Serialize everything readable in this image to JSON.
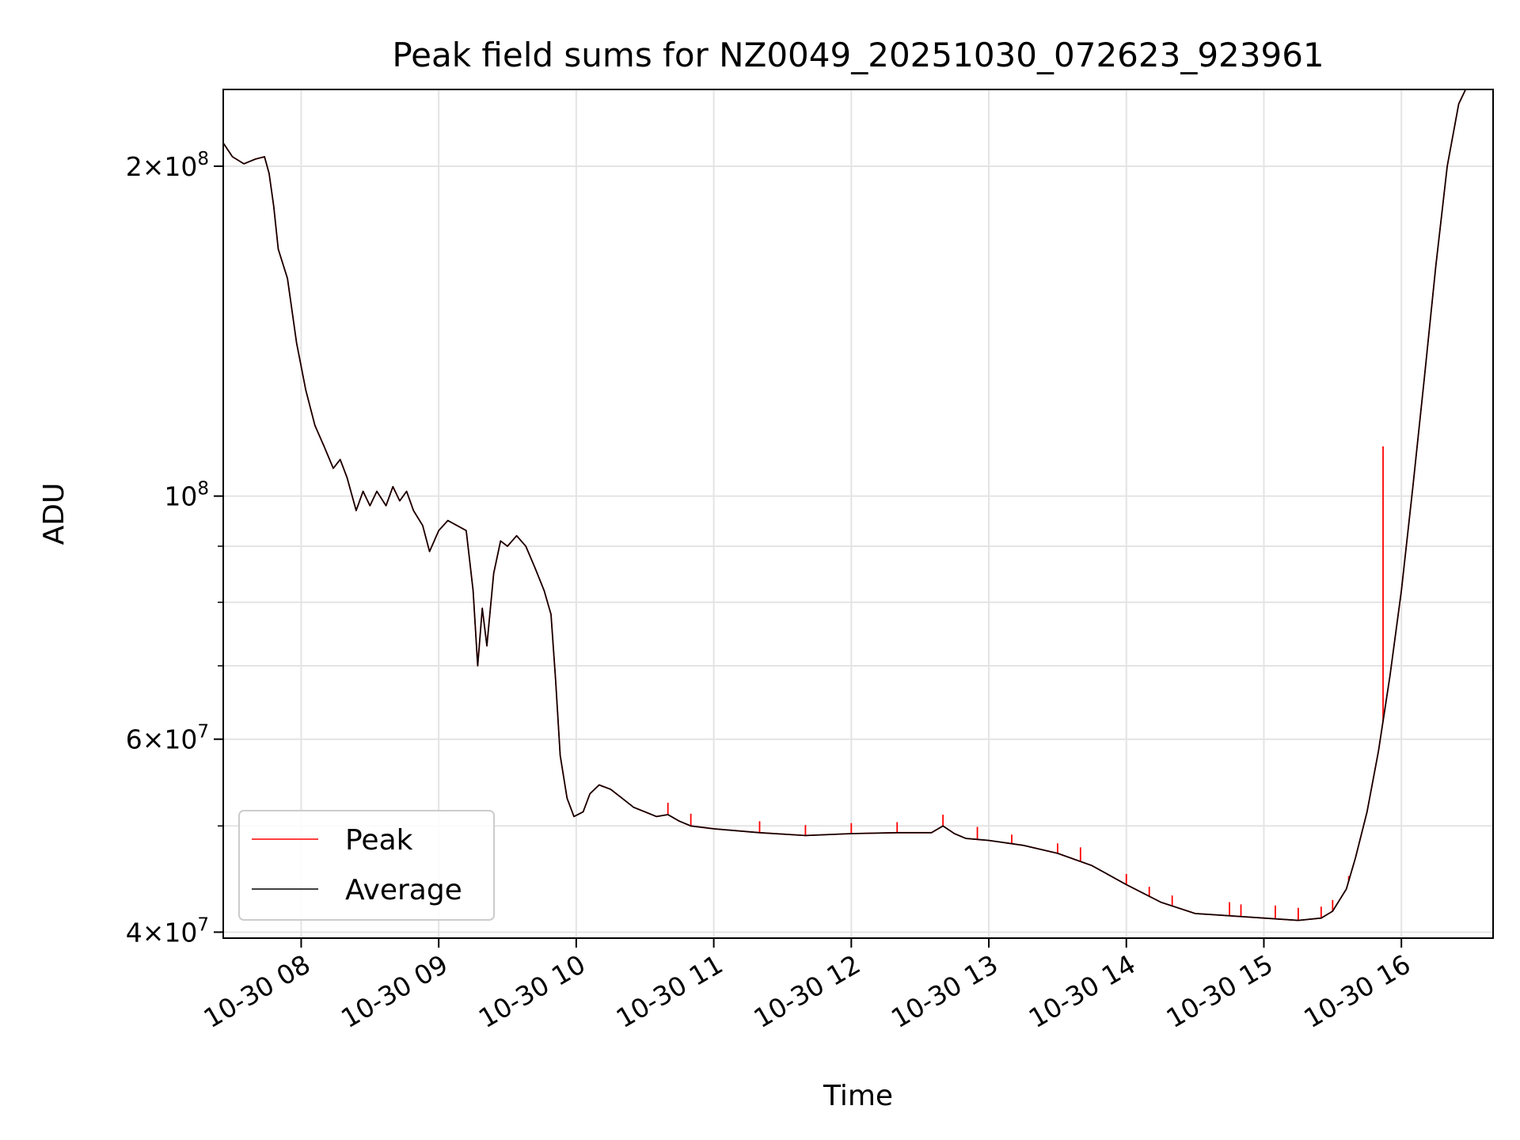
{
  "chart_data": {
    "type": "line",
    "title": "Peak field sums for NZ0049_20251030_072623_923961",
    "xlabel": "Time",
    "ylabel": "ADU",
    "y_scale": "log",
    "grid": true,
    "legend_position": "lower-left",
    "x_time_range": [
      "2025-10-30 07:26",
      "2025-10-30 16:40"
    ],
    "ylim": [
      39500000,
      235000000
    ],
    "x_ticks": [
      "2025-10-30 08:00",
      "2025-10-30 09:00",
      "2025-10-30 10:00",
      "2025-10-30 11:00",
      "2025-10-30 12:00",
      "2025-10-30 13:00",
      "2025-10-30 14:00",
      "2025-10-30 15:00",
      "2025-10-30 16:00"
    ],
    "x_tick_labels": [
      "10-30 08",
      "10-30 09",
      "10-30 10",
      "10-30 11",
      "10-30 12",
      "10-30 13",
      "10-30 14",
      "10-30 15",
      "10-30 16"
    ],
    "y_ticks": [
      {
        "value": 200000000,
        "mantissa": "2",
        "exp": "8"
      },
      {
        "value": 100000000,
        "mantissa": "",
        "exp": "8"
      },
      {
        "value": 60000000,
        "mantissa": "6",
        "exp": "7"
      },
      {
        "value": 40000000,
        "mantissa": "4",
        "exp": "7"
      }
    ],
    "y_minor_ticks": [
      50000000,
      70000000,
      80000000,
      90000000
    ],
    "series": [
      {
        "name": "Average",
        "color": "#000000",
        "points": [
          [
            "2025-10-30 07:26",
            210000000
          ],
          [
            "2025-10-30 07:30",
            204000000
          ],
          [
            "2025-10-30 07:35",
            201000000
          ],
          [
            "2025-10-30 07:40",
            203000000
          ],
          [
            "2025-10-30 07:44",
            204000000
          ],
          [
            "2025-10-30 07:46",
            197000000
          ],
          [
            "2025-10-30 07:48",
            184000000
          ],
          [
            "2025-10-30 07:50",
            168000000
          ],
          [
            "2025-10-30 07:54",
            158000000
          ],
          [
            "2025-10-30 07:58",
            138000000
          ],
          [
            "2025-10-30 08:02",
            125000000
          ],
          [
            "2025-10-30 08:06",
            116000000
          ],
          [
            "2025-10-30 08:10",
            111000000
          ],
          [
            "2025-10-30 08:14",
            106000000
          ],
          [
            "2025-10-30 08:17",
            108000000
          ],
          [
            "2025-10-30 08:20",
            104000000
          ],
          [
            "2025-10-30 08:24",
            97000000
          ],
          [
            "2025-10-30 08:27",
            101000000
          ],
          [
            "2025-10-30 08:30",
            98000000
          ],
          [
            "2025-10-30 08:33",
            101000000
          ],
          [
            "2025-10-30 08:37",
            98000000
          ],
          [
            "2025-10-30 08:40",
            102000000
          ],
          [
            "2025-10-30 08:43",
            99000000
          ],
          [
            "2025-10-30 08:46",
            101000000
          ],
          [
            "2025-10-30 08:49",
            97000000
          ],
          [
            "2025-10-30 08:53",
            94000000
          ],
          [
            "2025-10-30 08:56",
            89000000
          ],
          [
            "2025-10-30 09:00",
            93000000
          ],
          [
            "2025-10-30 09:04",
            95000000
          ],
          [
            "2025-10-30 09:08",
            94000000
          ],
          [
            "2025-10-30 09:12",
            93000000
          ],
          [
            "2025-10-30 09:15",
            82000000
          ],
          [
            "2025-10-30 09:17",
            70000000
          ],
          [
            "2025-10-30 09:19",
            79000000
          ],
          [
            "2025-10-30 09:21",
            73000000
          ],
          [
            "2025-10-30 09:24",
            85000000
          ],
          [
            "2025-10-30 09:27",
            91000000
          ],
          [
            "2025-10-30 09:30",
            90000000
          ],
          [
            "2025-10-30 09:34",
            92000000
          ],
          [
            "2025-10-30 09:38",
            90000000
          ],
          [
            "2025-10-30 09:42",
            86000000
          ],
          [
            "2025-10-30 09:46",
            82000000
          ],
          [
            "2025-10-30 09:49",
            78000000
          ],
          [
            "2025-10-30 09:51",
            68000000
          ],
          [
            "2025-10-30 09:53",
            58000000
          ],
          [
            "2025-10-30 09:56",
            53000000
          ],
          [
            "2025-10-30 09:59",
            51000000
          ],
          [
            "2025-10-30 10:03",
            51500000
          ],
          [
            "2025-10-30 10:06",
            53500000
          ],
          [
            "2025-10-30 10:10",
            54500000
          ],
          [
            "2025-10-30 10:15",
            54000000
          ],
          [
            "2025-10-30 10:20",
            53000000
          ],
          [
            "2025-10-30 10:25",
            52000000
          ],
          [
            "2025-10-30 10:30",
            51500000
          ],
          [
            "2025-10-30 10:35",
            51000000
          ],
          [
            "2025-10-30 10:40",
            51200000
          ],
          [
            "2025-10-30 10:45",
            50500000
          ],
          [
            "2025-10-30 10:50",
            50000000
          ],
          [
            "2025-10-30 11:00",
            49700000
          ],
          [
            "2025-10-30 11:20",
            49300000
          ],
          [
            "2025-10-30 11:40",
            49000000
          ],
          [
            "2025-10-30 12:00",
            49200000
          ],
          [
            "2025-10-30 12:20",
            49300000
          ],
          [
            "2025-10-30 12:35",
            49300000
          ],
          [
            "2025-10-30 12:40",
            50000000
          ],
          [
            "2025-10-30 12:45",
            49200000
          ],
          [
            "2025-10-30 12:50",
            48700000
          ],
          [
            "2025-10-30 13:00",
            48500000
          ],
          [
            "2025-10-30 13:15",
            48000000
          ],
          [
            "2025-10-30 13:30",
            47200000
          ],
          [
            "2025-10-30 13:45",
            46000000
          ],
          [
            "2025-10-30 14:00",
            44200000
          ],
          [
            "2025-10-30 14:15",
            42600000
          ],
          [
            "2025-10-30 14:30",
            41600000
          ],
          [
            "2025-10-30 15:00",
            41200000
          ],
          [
            "2025-10-30 15:15",
            41000000
          ],
          [
            "2025-10-30 15:25",
            41200000
          ],
          [
            "2025-10-30 15:30",
            41800000
          ],
          [
            "2025-10-30 15:36",
            43800000
          ],
          [
            "2025-10-30 15:40",
            46800000
          ],
          [
            "2025-10-30 15:45",
            51500000
          ],
          [
            "2025-10-30 15:50",
            58500000
          ],
          [
            "2025-10-30 15:55",
            68500000
          ],
          [
            "2025-10-30 16:00",
            82000000
          ],
          [
            "2025-10-30 16:05",
            102000000
          ],
          [
            "2025-10-30 16:10",
            128000000
          ],
          [
            "2025-10-30 16:15",
            162000000
          ],
          [
            "2025-10-30 16:20",
            200000000
          ],
          [
            "2025-10-30 16:25",
            228000000
          ],
          [
            "2025-10-30 16:28",
            235000000
          ],
          [
            "2025-10-30 16:40",
            235000000
          ]
        ]
      },
      {
        "name": "Peak",
        "color": "#ff0000",
        "note_same_as_average_except_spikes": true,
        "spikes": [
          [
            "2025-10-30 10:40",
            52500000
          ],
          [
            "2025-10-30 10:50",
            51300000
          ],
          [
            "2025-10-30 11:20",
            50500000
          ],
          [
            "2025-10-30 11:40",
            50100000
          ],
          [
            "2025-10-30 12:00",
            50300000
          ],
          [
            "2025-10-30 12:20",
            50400000
          ],
          [
            "2025-10-30 12:40",
            51200000
          ],
          [
            "2025-10-30 12:55",
            49900000
          ],
          [
            "2025-10-30 13:10",
            49100000
          ],
          [
            "2025-10-30 13:30",
            48200000
          ],
          [
            "2025-10-30 13:40",
            47800000
          ],
          [
            "2025-10-30 14:00",
            45200000
          ],
          [
            "2025-10-30 14:10",
            44000000
          ],
          [
            "2025-10-30 14:20",
            43200000
          ],
          [
            "2025-10-30 14:45",
            42600000
          ],
          [
            "2025-10-30 14:50",
            42400000
          ],
          [
            "2025-10-30 15:05",
            42300000
          ],
          [
            "2025-10-30 15:15",
            42100000
          ],
          [
            "2025-10-30 15:25",
            42200000
          ],
          [
            "2025-10-30 15:30",
            42800000
          ],
          [
            "2025-10-30 15:37",
            45000000
          ],
          [
            "2025-10-30 15:52",
            111000000
          ]
        ]
      }
    ]
  }
}
